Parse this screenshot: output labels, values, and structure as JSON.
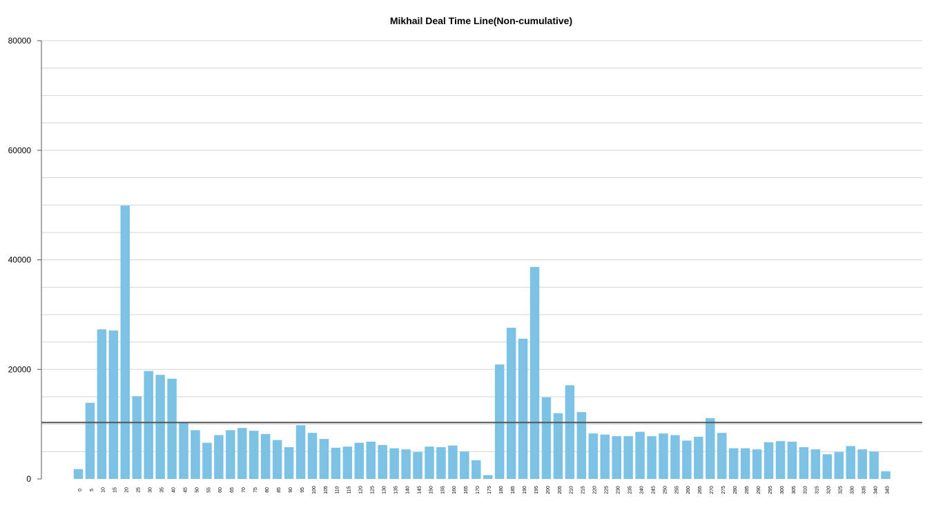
{
  "chart_data": {
    "type": "bar",
    "title": "Mikhail Deal Time Line(Non-cumulative)",
    "xlabel": "",
    "ylabel": "",
    "ylim": [
      0,
      80000
    ],
    "yticks": [
      "0",
      "20000",
      "40000",
      "60000",
      "80000"
    ],
    "categories": [
      "0",
      "5",
      "10",
      "15",
      "20",
      "25",
      "30",
      "35",
      "40",
      "45",
      "50",
      "55",
      "60",
      "65",
      "70",
      "75",
      "80",
      "85",
      "90",
      "95",
      "100",
      "105",
      "110",
      "115",
      "120",
      "125",
      "130",
      "135",
      "140",
      "145",
      "150",
      "155",
      "160",
      "165",
      "170",
      "175",
      "180",
      "185",
      "190",
      "195",
      "200",
      "205",
      "210",
      "215",
      "220",
      "225",
      "230",
      "235",
      "240",
      "245",
      "250",
      "255",
      "260",
      "265",
      "270",
      "275",
      "280",
      "285",
      "290",
      "295",
      "300",
      "305",
      "310",
      "315",
      "320",
      "325",
      "330",
      "335",
      "340",
      "345"
    ],
    "values": [
      1800,
      13900,
      27300,
      27100,
      49900,
      15100,
      19700,
      19000,
      18300,
      10300,
      8900,
      6600,
      8000,
      8900,
      9300,
      8800,
      8200,
      7100,
      5800,
      9800,
      8400,
      7300,
      5700,
      5900,
      6600,
      6800,
      6200,
      5600,
      5400,
      4900,
      5900,
      5800,
      6100,
      5000,
      3400,
      700,
      20900,
      27600,
      25600,
      38700,
      14900,
      12000,
      17100,
      12200,
      8300,
      8100,
      7800,
      7800,
      8600,
      7800,
      8300,
      8000,
      7000,
      7700,
      11100,
      8400,
      5600,
      5600,
      5400,
      6700,
      6900,
      6800,
      5800,
      5400,
      4500,
      4900,
      6000,
      5400,
      5000,
      1400
    ],
    "reference_line": 10300,
    "grid": true,
    "colors": {
      "bar": "#7cc2e5",
      "grid": "#d3d3d3",
      "reference_line": "#555555",
      "axis": "#555555"
    }
  }
}
